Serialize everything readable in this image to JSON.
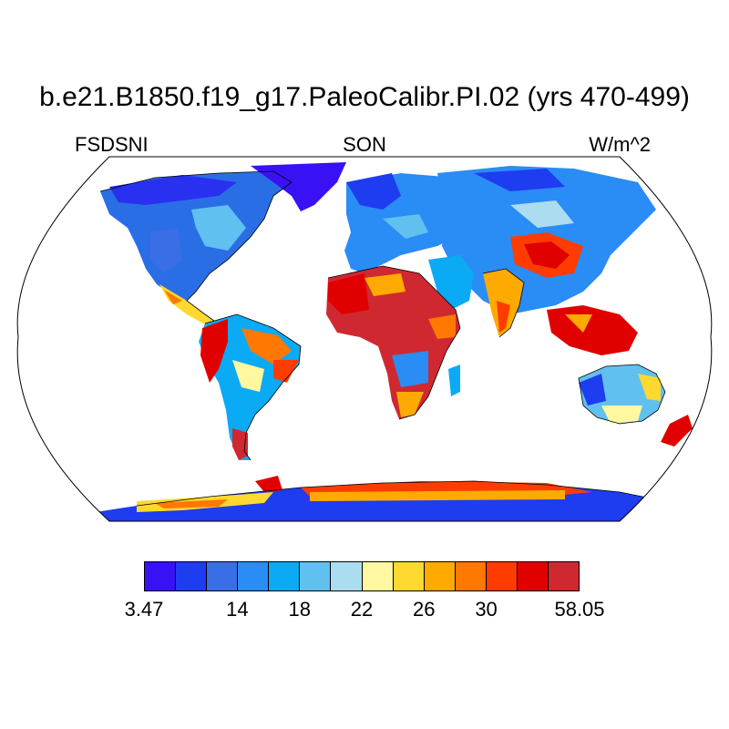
{
  "title": "b.e21.B1850.f19_g17.PaleoCalibr.PI.02 (yrs 470-499)",
  "left_label": "FSDSNI",
  "center_label": "SON",
  "right_label": "W/m^2",
  "colorbar": {
    "colors": [
      "#3a10f5",
      "#1e3cf0",
      "#3a6ee6",
      "#2a8cf5",
      "#0aaaf5",
      "#60c0f0",
      "#acdcf0",
      "#fff8a0",
      "#ffd830",
      "#ffaa00",
      "#ff7800",
      "#ff3c00",
      "#e00000",
      "#d02830"
    ],
    "tick_labels": [
      {
        "label": "3.47",
        "boundary": 0
      },
      {
        "label": "14",
        "boundary": 3
      },
      {
        "label": "18",
        "boundary": 5
      },
      {
        "label": "22",
        "boundary": 7
      },
      {
        "label": "26",
        "boundary": 9
      },
      {
        "label": "30",
        "boundary": 11
      },
      {
        "label": "58.05",
        "boundary": 14
      }
    ]
  },
  "map": {
    "projection": "robinson",
    "ocean_color": "#ffffff",
    "coastline_color": "#000000"
  }
}
